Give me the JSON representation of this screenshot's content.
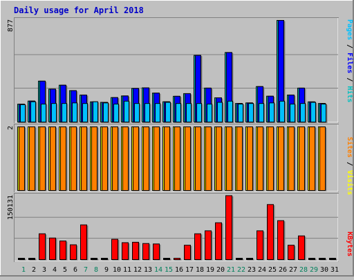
{
  "colors": {
    "background": "#c0c0c0",
    "title": "#0000c8",
    "hits": "#00c0c0",
    "files": "#0000ff",
    "pages": "#00c0ff",
    "visits": "#ffff00",
    "sites": "#ff8000",
    "kbytes": "#ff0000",
    "weekday_label": "#000000",
    "weekend_label": "#00805c",
    "outline": "#000000",
    "panel_bg": "#c0c0c0"
  },
  "chart_data": [
    {
      "type": "bar",
      "name": "hits-files-pages",
      "title": "Daily usage for April 2018",
      "ymax_label": "877",
      "ylim": [
        0,
        877
      ],
      "legend": [
        "Pages",
        "Files",
        "Hits"
      ],
      "legend_separator": " / ",
      "grid": true,
      "categories": [
        "1",
        "2",
        "3",
        "4",
        "5",
        "6",
        "7",
        "8",
        "9",
        "10",
        "11",
        "12",
        "13",
        "14",
        "15",
        "16",
        "17",
        "18",
        "19",
        "20",
        "21",
        "22",
        "23",
        "24",
        "25",
        "26",
        "27",
        "28",
        "29",
        "30",
        "31"
      ],
      "series": [
        {
          "name": "Hits",
          "values": [
            154,
            181,
            353,
            284,
            318,
            271,
            233,
            174,
            170,
            211,
            225,
            290,
            295,
            250,
            175,
            222,
            245,
            575,
            293,
            209,
            600,
            160,
            165,
            306,
            223,
            877,
            233,
            293,
            174,
            160,
            0
          ]
        },
        {
          "name": "Files",
          "values": [
            154,
            181,
            353,
            284,
            318,
            271,
            233,
            174,
            170,
            211,
            225,
            290,
            295,
            250,
            175,
            222,
            245,
            575,
            293,
            209,
            600,
            160,
            165,
            306,
            223,
            877,
            233,
            293,
            174,
            160,
            0
          ]
        },
        {
          "name": "Pages",
          "values": [
            150,
            175,
            155,
            160,
            160,
            165,
            160,
            175,
            165,
            155,
            180,
            160,
            160,
            160,
            170,
            160,
            160,
            160,
            155,
            170,
            180,
            155,
            160,
            160,
            165,
            180,
            155,
            160,
            170,
            155,
            0
          ]
        }
      ]
    },
    {
      "type": "bar",
      "name": "visits-sites",
      "ymax_label": "2",
      "ylim": [
        0,
        2
      ],
      "legend": [
        "Sites",
        "Visits"
      ],
      "legend_separator": " / ",
      "grid": false,
      "categories": [
        "1",
        "2",
        "3",
        "4",
        "5",
        "6",
        "7",
        "8",
        "9",
        "10",
        "11",
        "12",
        "13",
        "14",
        "15",
        "16",
        "17",
        "18",
        "19",
        "20",
        "21",
        "22",
        "23",
        "24",
        "25",
        "26",
        "27",
        "28",
        "29",
        "30",
        "31"
      ],
      "series": [
        {
          "name": "Visits",
          "values": [
            2,
            2,
            2,
            2,
            2,
            2,
            2,
            2,
            2,
            2,
            2,
            2,
            2,
            2,
            2,
            2,
            2,
            2,
            2,
            2,
            2,
            2,
            2,
            2,
            2,
            2,
            2,
            2,
            2,
            2,
            0
          ]
        },
        {
          "name": "Sites",
          "values": [
            2,
            2,
            2,
            2,
            2,
            2,
            2,
            2,
            2,
            2,
            2,
            2,
            2,
            2,
            2,
            2,
            2,
            2,
            2,
            2,
            2,
            2,
            2,
            2,
            2,
            2,
            2,
            2,
            2,
            2,
            0
          ]
        }
      ]
    },
    {
      "type": "bar",
      "name": "kbytes",
      "ymax_label": "150131",
      "ylim": [
        0,
        150131
      ],
      "legend": [
        "KBytes"
      ],
      "grid": true,
      "categories": [
        "1",
        "2",
        "3",
        "4",
        "5",
        "6",
        "7",
        "8",
        "9",
        "10",
        "11",
        "12",
        "13",
        "14",
        "15",
        "16",
        "17",
        "18",
        "19",
        "20",
        "21",
        "22",
        "23",
        "24",
        "25",
        "26",
        "27",
        "28",
        "29",
        "30",
        "31"
      ],
      "series": [
        {
          "name": "KBytes",
          "values": [
            0,
            0,
            61000,
            51000,
            44000,
            35000,
            82000,
            0,
            0,
            48000,
            40000,
            41000,
            38000,
            37000,
            0,
            3000,
            34000,
            61000,
            68000,
            87000,
            151000,
            0,
            0,
            68000,
            130000,
            92000,
            34000,
            56000,
            0,
            0,
            0
          ]
        }
      ]
    }
  ],
  "days": {
    "labels": [
      "1",
      "2",
      "3",
      "4",
      "5",
      "6",
      "7",
      "8",
      "9",
      "10",
      "11",
      "12",
      "13",
      "14",
      "15",
      "16",
      "17",
      "18",
      "19",
      "20",
      "21",
      "22",
      "23",
      "24",
      "25",
      "26",
      "27",
      "28",
      "29",
      "30",
      "31"
    ],
    "weekend": [
      true,
      false,
      false,
      false,
      false,
      false,
      true,
      true,
      false,
      false,
      false,
      false,
      false,
      true,
      true,
      false,
      false,
      false,
      false,
      false,
      true,
      true,
      false,
      false,
      false,
      false,
      false,
      true,
      true,
      false,
      false
    ]
  }
}
